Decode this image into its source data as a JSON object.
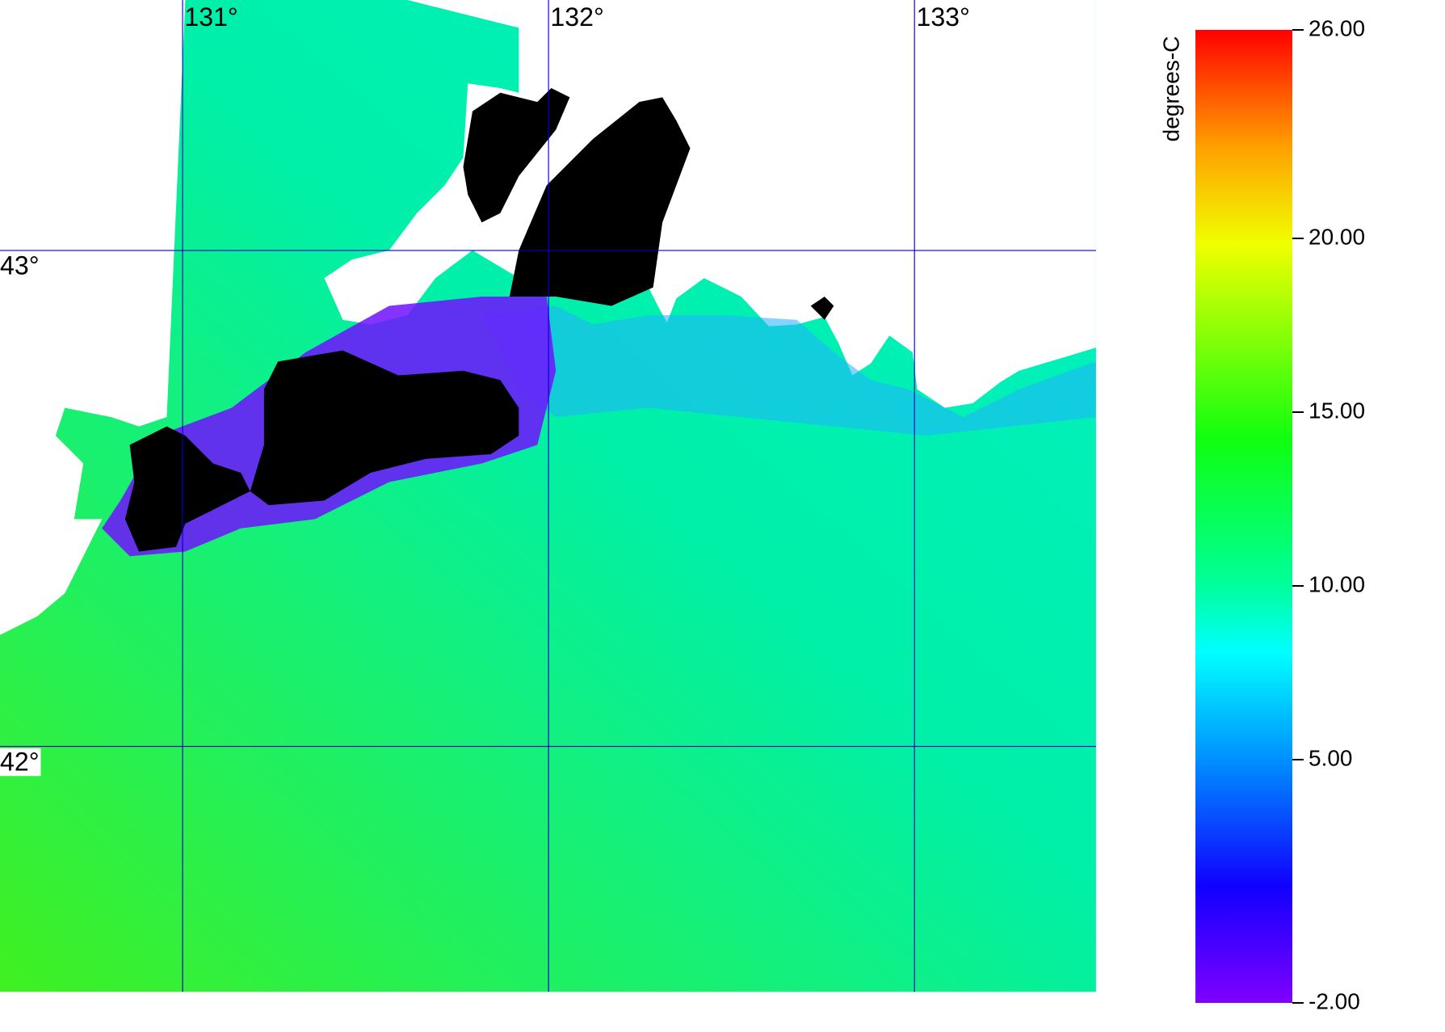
{
  "map": {
    "xlim": [
      130.501,
      133.496
    ],
    "ylim": [
      41.505,
      43.505
    ],
    "xticks": [
      {
        "value": 131,
        "label": "131°"
      },
      {
        "value": 132,
        "label": "132°"
      },
      {
        "value": 133,
        "label": "133°"
      }
    ],
    "yticks": [
      {
        "value": 43,
        "label": "43°"
      },
      {
        "value": 42,
        "label": "42°"
      }
    ]
  },
  "colorbar": {
    "label": "degrees-C",
    "lim": [
      -2,
      26
    ],
    "ticks": [
      {
        "value": -2,
        "label": "-2.00"
      },
      {
        "value": 5,
        "label": "5.00"
      },
      {
        "value": 10,
        "label": "10.00"
      },
      {
        "value": 15,
        "label": "15.00"
      },
      {
        "value": 20,
        "label": "20.00"
      },
      {
        "value": 26,
        "label": "26.00"
      }
    ]
  }
}
